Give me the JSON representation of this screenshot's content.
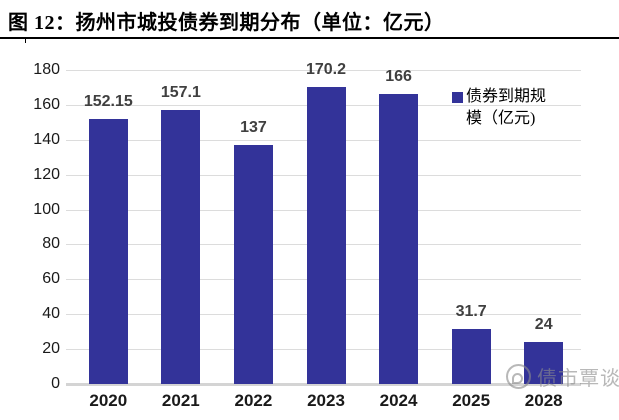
{
  "figure": {
    "title": "图 12：扬州市城投债券到期分布（单位：亿元）"
  },
  "legend": {
    "line1": "债券到期规",
    "line2": "模（亿元)"
  },
  "watermark": {
    "text": "债市覃谈",
    "logo_icon": "swirl-logo-icon"
  },
  "chart_data": {
    "type": "bar",
    "title": "图 12：扬州市城投债券到期分布（单位：亿元）",
    "categories": [
      "2020",
      "2021",
      "2022",
      "2023",
      "2024",
      "2025",
      "2028"
    ],
    "values": [
      152.15,
      157.1,
      137,
      170.2,
      166,
      31.7,
      24
    ],
    "value_labels": [
      "152.15",
      "157.1",
      "137",
      "170.2",
      "166",
      "31.7",
      "24"
    ],
    "series_name": "债券到期规模（亿元)",
    "xlabel": "",
    "ylabel": "",
    "ylim": [
      0,
      180
    ],
    "yticks": [
      0,
      20,
      40,
      60,
      80,
      100,
      120,
      140,
      160,
      180
    ],
    "grid": "horizontal",
    "legend_position": "inside-top-right",
    "bar_color": "#333399",
    "grid_color": "#dcdcdc",
    "label_color": "#404040"
  }
}
